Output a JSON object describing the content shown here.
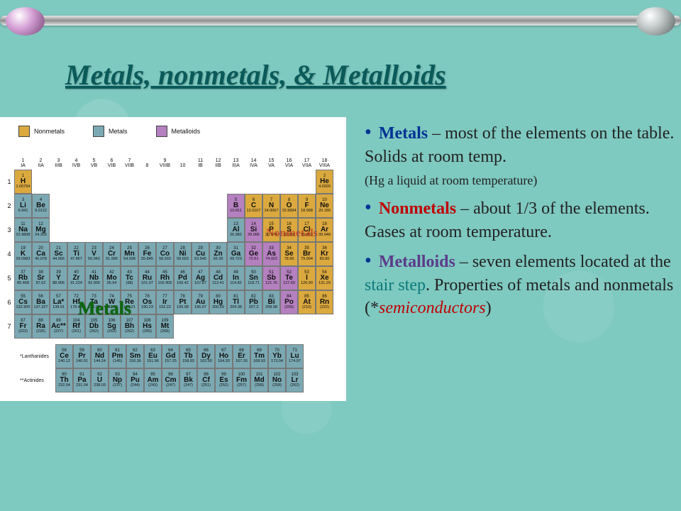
{
  "title": "Metals, nonmetals, & Metalloids",
  "colors": {
    "background": "#7ec9c0",
    "nonmetal": "#dba93e",
    "metal": "#7ba9b3",
    "metalloid": "#b580c0",
    "title_color": "#0a5a5a",
    "bullet_blue": "#003296",
    "bullet_red": "#c00000",
    "bullet_purple": "#5b3b8a",
    "stair_teal": "#0a7a7a"
  },
  "legend": [
    {
      "label": "Nonmetals",
      "color": "#dba93e"
    },
    {
      "label": "Metals",
      "color": "#7ba9b3"
    },
    {
      "label": "Metalloids",
      "color": "#b580c0"
    }
  ],
  "group_headers": [
    "1\nIA",
    "2\nIIA",
    "3\nIIIB",
    "4\nIVB",
    "5\nVB",
    "6\nVIB",
    "7\nVIIB",
    "8",
    "9\nVIIIB",
    "10",
    "11\nIB",
    "12\nIIB",
    "13\nIIIA",
    "14\nIVA",
    "15\nVA",
    "16\nVIA",
    "17\nVIIA",
    "18\nVIIIA"
  ],
  "periods": [
    [
      {
        "n": "1",
        "s": "H",
        "m": "1.00794",
        "c": "non"
      },
      "",
      "",
      "",
      "",
      "",
      "",
      "",
      "",
      "",
      "",
      "",
      "",
      "",
      "",
      "",
      "",
      {
        "n": "2",
        "s": "He",
        "m": "4.0026",
        "c": "non"
      }
    ],
    [
      {
        "n": "3",
        "s": "Li",
        "m": "6.941",
        "c": "met"
      },
      {
        "n": "4",
        "s": "Be",
        "m": "9.0122",
        "c": "met"
      },
      "",
      "",
      "",
      "",
      "",
      "",
      "",
      "",
      "",
      "",
      {
        "n": "5",
        "s": "B",
        "m": "10.811",
        "c": "loid"
      },
      {
        "n": "6",
        "s": "C",
        "m": "12.0107",
        "c": "non"
      },
      {
        "n": "7",
        "s": "N",
        "m": "14.0067",
        "c": "non"
      },
      {
        "n": "8",
        "s": "O",
        "m": "15.9994",
        "c": "non"
      },
      {
        "n": "9",
        "s": "F",
        "m": "18.998",
        "c": "non"
      },
      {
        "n": "10",
        "s": "Ne",
        "m": "20.180",
        "c": "non"
      }
    ],
    [
      {
        "n": "11",
        "s": "Na",
        "m": "22.9898",
        "c": "met"
      },
      {
        "n": "12",
        "s": "Mg",
        "m": "24.305",
        "c": "met"
      },
      "",
      "",
      "",
      "",
      "",
      "",
      "",
      "",
      "",
      "",
      {
        "n": "13",
        "s": "Al",
        "m": "26.982",
        "c": "met"
      },
      {
        "n": "14",
        "s": "Si",
        "m": "28.086",
        "c": "loid"
      },
      {
        "n": "15",
        "s": "P",
        "m": "30.974",
        "c": "non"
      },
      {
        "n": "16",
        "s": "S",
        "m": "32.066",
        "c": "non"
      },
      {
        "n": "17",
        "s": "Cl",
        "m": "35.453",
        "c": "non"
      },
      {
        "n": "18",
        "s": "Ar",
        "m": "39.948",
        "c": "non"
      }
    ],
    [
      {
        "n": "19",
        "s": "K",
        "m": "39.0983",
        "c": "met"
      },
      {
        "n": "20",
        "s": "Ca",
        "m": "40.078",
        "c": "met"
      },
      {
        "n": "21",
        "s": "Sc",
        "m": "44.956",
        "c": "met"
      },
      {
        "n": "22",
        "s": "Ti",
        "m": "47.867",
        "c": "met"
      },
      {
        "n": "23",
        "s": "V",
        "m": "50.942",
        "c": "met"
      },
      {
        "n": "24",
        "s": "Cr",
        "m": "51.996",
        "c": "met"
      },
      {
        "n": "25",
        "s": "Mn",
        "m": "54.938",
        "c": "met"
      },
      {
        "n": "26",
        "s": "Fe",
        "m": "55.845",
        "c": "met"
      },
      {
        "n": "27",
        "s": "Co",
        "m": "58.933",
        "c": "met"
      },
      {
        "n": "28",
        "s": "Ni",
        "m": "58.693",
        "c": "met"
      },
      {
        "n": "29",
        "s": "Cu",
        "m": "63.546",
        "c": "met"
      },
      {
        "n": "30",
        "s": "Zn",
        "m": "65.39",
        "c": "met"
      },
      {
        "n": "31",
        "s": "Ga",
        "m": "69.723",
        "c": "met"
      },
      {
        "n": "32",
        "s": "Ge",
        "m": "72.61",
        "c": "loid"
      },
      {
        "n": "33",
        "s": "As",
        "m": "74.922",
        "c": "loid"
      },
      {
        "n": "34",
        "s": "Se",
        "m": "78.96",
        "c": "non"
      },
      {
        "n": "35",
        "s": "Br",
        "m": "79.904",
        "c": "non"
      },
      {
        "n": "36",
        "s": "Kr",
        "m": "83.80",
        "c": "non"
      }
    ],
    [
      {
        "n": "37",
        "s": "Rb",
        "m": "85.468",
        "c": "met"
      },
      {
        "n": "38",
        "s": "Sr",
        "m": "87.62",
        "c": "met"
      },
      {
        "n": "39",
        "s": "Y",
        "m": "88.906",
        "c": "met"
      },
      {
        "n": "40",
        "s": "Zr",
        "m": "91.224",
        "c": "met"
      },
      {
        "n": "41",
        "s": "Nb",
        "m": "92.906",
        "c": "met"
      },
      {
        "n": "42",
        "s": "Mo",
        "m": "95.94",
        "c": "met"
      },
      {
        "n": "43",
        "s": "Tc",
        "m": "(98)",
        "c": "met"
      },
      {
        "n": "44",
        "s": "Ru",
        "m": "101.07",
        "c": "met"
      },
      {
        "n": "45",
        "s": "Rh",
        "m": "102.906",
        "c": "met"
      },
      {
        "n": "46",
        "s": "Pd",
        "m": "106.42",
        "c": "met"
      },
      {
        "n": "47",
        "s": "Ag",
        "m": "107.87",
        "c": "met"
      },
      {
        "n": "48",
        "s": "Cd",
        "m": "112.41",
        "c": "met"
      },
      {
        "n": "49",
        "s": "In",
        "m": "114.82",
        "c": "met"
      },
      {
        "n": "50",
        "s": "Sn",
        "m": "118.71",
        "c": "met"
      },
      {
        "n": "51",
        "s": "Sb",
        "m": "121.76",
        "c": "loid"
      },
      {
        "n": "52",
        "s": "Te",
        "m": "127.60",
        "c": "loid"
      },
      {
        "n": "53",
        "s": "I",
        "m": "126.90",
        "c": "non"
      },
      {
        "n": "54",
        "s": "Xe",
        "m": "131.29",
        "c": "non"
      }
    ],
    [
      {
        "n": "55",
        "s": "Cs",
        "m": "132.905",
        "c": "met"
      },
      {
        "n": "56",
        "s": "Ba",
        "m": "137.327",
        "c": "met"
      },
      {
        "n": "57",
        "s": "La*",
        "m": "138.91",
        "c": "met"
      },
      {
        "n": "72",
        "s": "Hf",
        "m": "178.49",
        "c": "met"
      },
      {
        "n": "73",
        "s": "Ta",
        "m": "180.95",
        "c": "met"
      },
      {
        "n": "74",
        "s": "W",
        "m": "183.84",
        "c": "met"
      },
      {
        "n": "75",
        "s": "Re",
        "m": "186.21",
        "c": "met"
      },
      {
        "n": "76",
        "s": "Os",
        "m": "190.23",
        "c": "met"
      },
      {
        "n": "77",
        "s": "Ir",
        "m": "192.22",
        "c": "met"
      },
      {
        "n": "78",
        "s": "Pt",
        "m": "195.08",
        "c": "met"
      },
      {
        "n": "79",
        "s": "Au",
        "m": "196.97",
        "c": "met"
      },
      {
        "n": "80",
        "s": "Hg",
        "m": "200.59",
        "c": "met"
      },
      {
        "n": "81",
        "s": "Tl",
        "m": "204.38",
        "c": "met"
      },
      {
        "n": "82",
        "s": "Pb",
        "m": "207.2",
        "c": "met"
      },
      {
        "n": "83",
        "s": "Bi",
        "m": "208.98",
        "c": "met"
      },
      {
        "n": "84",
        "s": "Po",
        "m": "(209)",
        "c": "loid"
      },
      {
        "n": "85",
        "s": "At",
        "m": "(210)",
        "c": "non"
      },
      {
        "n": "86",
        "s": "Rn",
        "m": "(222)",
        "c": "non"
      }
    ],
    [
      {
        "n": "87",
        "s": "Fr",
        "m": "(223)",
        "c": "met"
      },
      {
        "n": "88",
        "s": "Ra",
        "m": "(226)",
        "c": "met"
      },
      {
        "n": "89",
        "s": "Ac**",
        "m": "(227)",
        "c": "met"
      },
      {
        "n": "104",
        "s": "Rf",
        "m": "(261)",
        "c": "met"
      },
      {
        "n": "105",
        "s": "Db",
        "m": "(262)",
        "c": "met"
      },
      {
        "n": "106",
        "s": "Sg",
        "m": "(263)",
        "c": "met"
      },
      {
        "n": "107",
        "s": "Bh",
        "m": "(262)",
        "c": "met"
      },
      {
        "n": "108",
        "s": "Hs",
        "m": "(265)",
        "c": "met"
      },
      {
        "n": "109",
        "s": "Mt",
        "m": "(268)",
        "c": "met"
      },
      "",
      "",
      "",
      "",
      "",
      "",
      "",
      "",
      ""
    ]
  ],
  "lanthanides_label": "*Lanthanides",
  "actinides_label": "**Actinides",
  "lanthanides": [
    {
      "n": "58",
      "s": "Ce",
      "m": "140.12"
    },
    {
      "n": "59",
      "s": "Pr",
      "m": "140.91"
    },
    {
      "n": "60",
      "s": "Nd",
      "m": "144.24"
    },
    {
      "n": "61",
      "s": "Pm",
      "m": "(145)"
    },
    {
      "n": "62",
      "s": "Sm",
      "m": "150.36"
    },
    {
      "n": "63",
      "s": "Eu",
      "m": "151.96"
    },
    {
      "n": "64",
      "s": "Gd",
      "m": "157.25"
    },
    {
      "n": "65",
      "s": "Tb",
      "m": "158.93"
    },
    {
      "n": "66",
      "s": "Dy",
      "m": "162.50"
    },
    {
      "n": "67",
      "s": "Ho",
      "m": "164.93"
    },
    {
      "n": "68",
      "s": "Er",
      "m": "167.26"
    },
    {
      "n": "69",
      "s": "Tm",
      "m": "168.93"
    },
    {
      "n": "70",
      "s": "Yb",
      "m": "173.04"
    },
    {
      "n": "71",
      "s": "Lu",
      "m": "174.97"
    }
  ],
  "actinides": [
    {
      "n": "90",
      "s": "Th",
      "m": "232.04"
    },
    {
      "n": "91",
      "s": "Pa",
      "m": "231.04"
    },
    {
      "n": "92",
      "s": "U",
      "m": "238.03"
    },
    {
      "n": "93",
      "s": "Np",
      "m": "(237)"
    },
    {
      "n": "94",
      "s": "Pu",
      "m": "(244)"
    },
    {
      "n": "95",
      "s": "Am",
      "m": "(243)"
    },
    {
      "n": "96",
      "s": "Cm",
      "m": "(247)"
    },
    {
      "n": "97",
      "s": "Bk",
      "m": "(247)"
    },
    {
      "n": "98",
      "s": "Cf",
      "m": "(251)"
    },
    {
      "n": "99",
      "s": "Es",
      "m": "(252)"
    },
    {
      "n": "100",
      "s": "Fm",
      "m": "(257)"
    },
    {
      "n": "101",
      "s": "Md",
      "m": "(258)"
    },
    {
      "n": "102",
      "s": "No",
      "m": "(259)"
    },
    {
      "n": "103",
      "s": "Lr",
      "m": "(262)"
    }
  ],
  "overlay_metals": "Metals",
  "overlay_nonmetals": "Nonmetals",
  "bullets": {
    "metals_kw": "Metals",
    "metals_txt1": " – most of the elements on the table. Solids at room temp.",
    "metals_txt2": "(Hg a liquid at room temperature)",
    "non_kw": "Nonmetals",
    "non_txt": " –   about 1/3 of the elements. Gases at room temperature.",
    "loid_kw": "Metalloids",
    "loid_txt1": " – seven elements located at the ",
    "stair": "stair step",
    "loid_txt2": ". Properties of metals and nonmetals (*",
    "semi": "semiconductors",
    "loid_txt3": ")"
  }
}
